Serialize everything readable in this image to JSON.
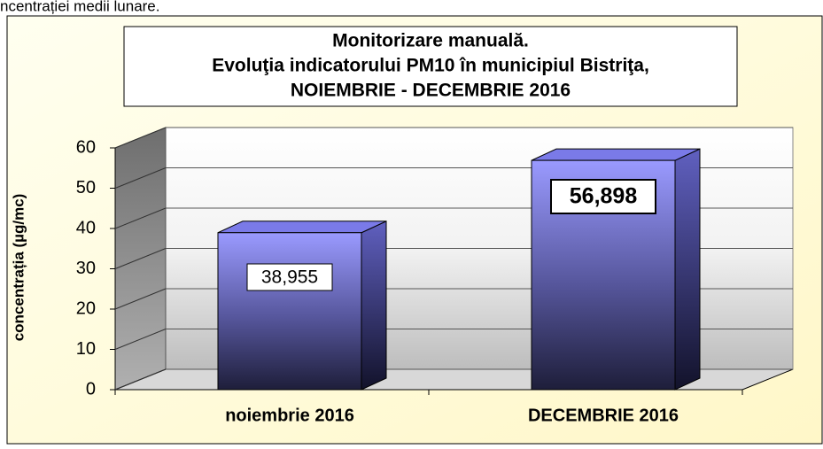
{
  "caption": "ncentrației medii lunare.",
  "chart_data": {
    "type": "bar3d",
    "title": [
      "Monitorizare manuală.",
      "Evoluţia indicatorului PM10 în municipiul Bistriţa,",
      "NOIEMBRIE  - DECEMBRIE  2016"
    ],
    "y_label": "concentrația (µg/mc)",
    "categories": [
      "noiembrie 2016",
      "DECEMBRIE 2016"
    ],
    "values": [
      38.955,
      56.898
    ],
    "value_labels": [
      "38,955",
      "56,898"
    ],
    "ylim": [
      0,
      60
    ],
    "yticks": [
      0,
      10,
      20,
      30,
      40,
      50,
      60
    ],
    "grid": true
  }
}
